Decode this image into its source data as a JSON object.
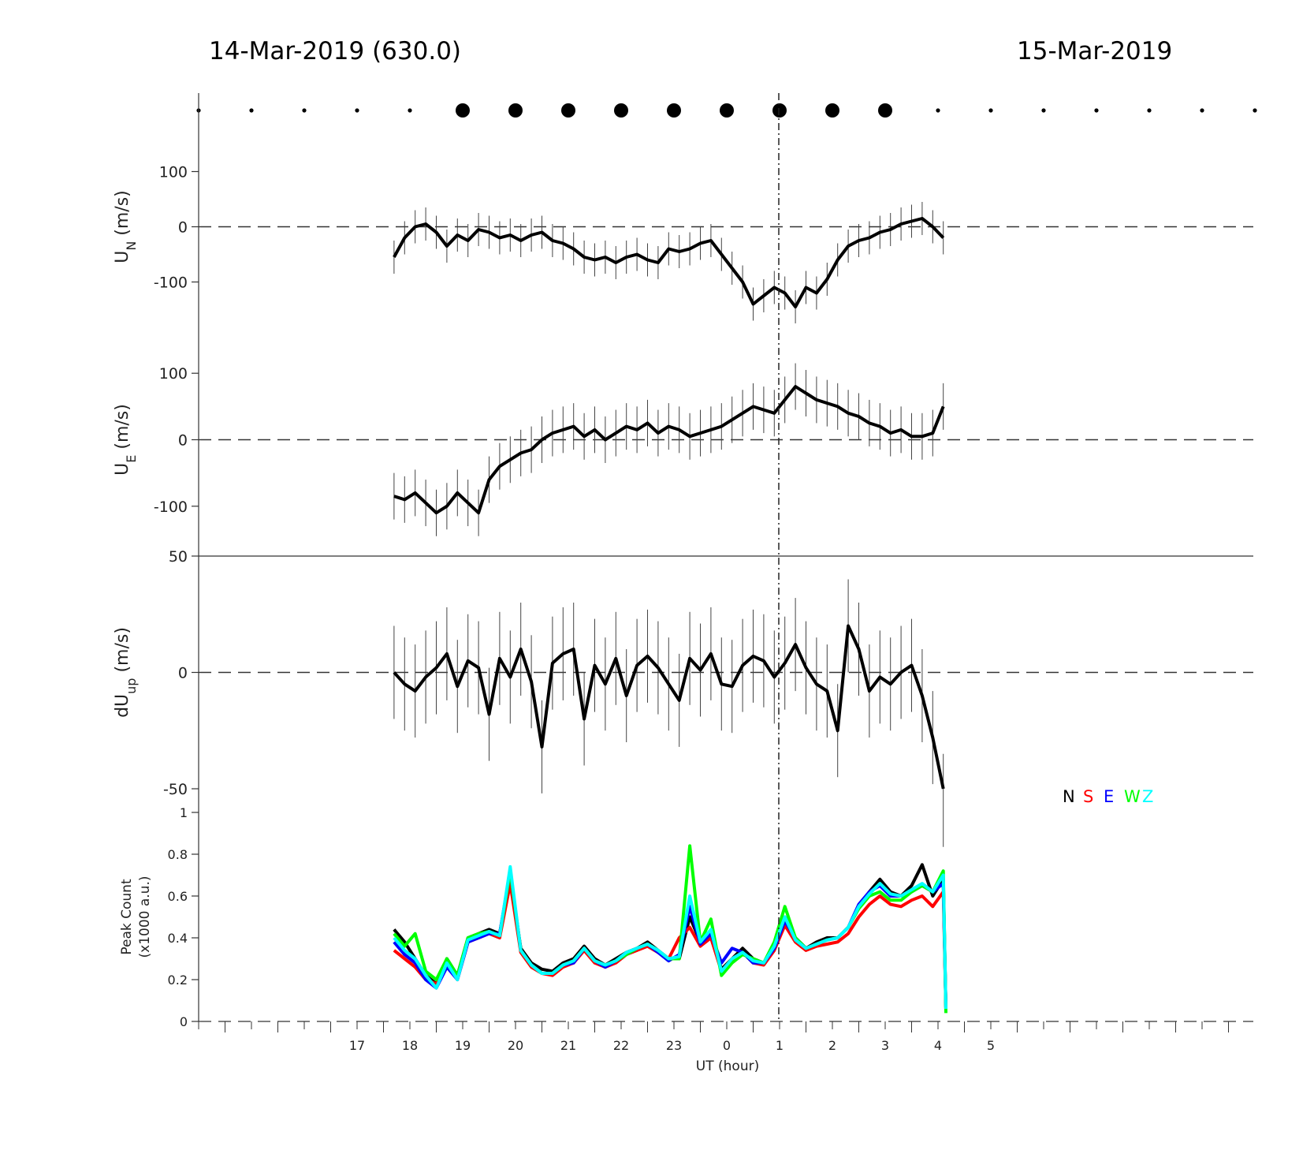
{
  "header": {
    "left_title": "14-Mar-2019 (630.0)",
    "right_title": "15-Mar-2019"
  },
  "chart_data": [
    {
      "type": "scatter",
      "panel": "cloud-indicator",
      "x": [
        14,
        15,
        16,
        17,
        18,
        19,
        20,
        21,
        22,
        23,
        24,
        25,
        26,
        27,
        28,
        29,
        30,
        31,
        32,
        33,
        34
      ],
      "marker_size": [
        "small",
        "small",
        "small",
        "small",
        "small",
        "large",
        "large",
        "large",
        "large",
        "large",
        "large",
        "large",
        "large",
        "large",
        "small",
        "small",
        "small",
        "small",
        "small",
        "small",
        "small"
      ]
    },
    {
      "type": "line",
      "panel": "UN",
      "ylabel": "U",
      "ylabel_sub": "N",
      "ylabel_unit": " (m/s)",
      "ylim": [
        -175,
        175
      ],
      "yticks": [
        100,
        0,
        -100
      ],
      "x": [
        17.7,
        17.9,
        18.1,
        18.3,
        18.5,
        18.7,
        18.9,
        19.1,
        19.3,
        19.5,
        19.7,
        19.9,
        20.1,
        20.3,
        20.5,
        20.7,
        20.9,
        21.1,
        21.3,
        21.5,
        21.7,
        21.9,
        22.1,
        22.3,
        22.5,
        22.7,
        22.9,
        23.1,
        23.3,
        23.5,
        23.7,
        23.9,
        24.1,
        24.3,
        24.5,
        24.7,
        24.9,
        25.1,
        25.3,
        25.5,
        25.7,
        25.9,
        26.1,
        26.3,
        26.5,
        26.7,
        26.9,
        27.1,
        27.3,
        27.5,
        27.7,
        27.9,
        28.1
      ],
      "y": [
        -55,
        -20,
        0,
        5,
        -10,
        -35,
        -15,
        -25,
        -5,
        -10,
        -20,
        -15,
        -25,
        -15,
        -10,
        -25,
        -30,
        -40,
        -55,
        -60,
        -55,
        -65,
        -55,
        -50,
        -60,
        -65,
        -40,
        -45,
        -40,
        -30,
        -25,
        -50,
        -75,
        -100,
        -140,
        -125,
        -110,
        -120,
        -145,
        -110,
        -120,
        -95,
        -60,
        -35,
        -25,
        -20,
        -10,
        -5,
        5,
        10,
        15,
        0,
        -20
      ],
      "err": 30
    },
    {
      "type": "line",
      "panel": "UE",
      "ylabel": "U",
      "ylabel_sub": "E",
      "ylabel_unit": " (m/s)",
      "ylim": [
        -175,
        175
      ],
      "yticks": [
        100,
        0,
        -100
      ],
      "x": [
        17.7,
        17.9,
        18.1,
        18.3,
        18.5,
        18.7,
        18.9,
        19.1,
        19.3,
        19.5,
        19.7,
        19.9,
        20.1,
        20.3,
        20.5,
        20.7,
        20.9,
        21.1,
        21.3,
        21.5,
        21.7,
        21.9,
        22.1,
        22.3,
        22.5,
        22.7,
        22.9,
        23.1,
        23.3,
        23.5,
        23.7,
        23.9,
        24.1,
        24.3,
        24.5,
        24.7,
        24.9,
        25.1,
        25.3,
        25.5,
        25.7,
        25.9,
        26.1,
        26.3,
        26.5,
        26.7,
        26.9,
        27.1,
        27.3,
        27.5,
        27.7,
        27.9,
        28.1
      ],
      "y": [
        -85,
        -90,
        -80,
        -95,
        -110,
        -100,
        -80,
        -95,
        -110,
        -60,
        -40,
        -30,
        -20,
        -15,
        0,
        10,
        15,
        20,
        5,
        15,
        0,
        10,
        20,
        15,
        25,
        10,
        20,
        15,
        5,
        10,
        15,
        20,
        30,
        40,
        50,
        45,
        40,
        60,
        80,
        70,
        60,
        55,
        50,
        40,
        35,
        25,
        20,
        10,
        15,
        5,
        5,
        10,
        50
      ],
      "err": 35
    },
    {
      "type": "line",
      "panel": "dUup",
      "ylabel": "dU",
      "ylabel_sub": "up",
      "ylabel_unit": " (m/s)",
      "ylim": [
        -50,
        50
      ],
      "yticks": [
        50,
        0,
        -50
      ],
      "x": [
        17.7,
        17.9,
        18.1,
        18.3,
        18.5,
        18.7,
        18.9,
        19.1,
        19.3,
        19.5,
        19.7,
        19.9,
        20.1,
        20.3,
        20.5,
        20.7,
        20.9,
        21.1,
        21.3,
        21.5,
        21.7,
        21.9,
        22.1,
        22.3,
        22.5,
        22.7,
        22.9,
        23.1,
        23.3,
        23.5,
        23.7,
        23.9,
        24.1,
        24.3,
        24.5,
        24.7,
        24.9,
        25.1,
        25.3,
        25.5,
        25.7,
        25.9,
        26.1,
        26.3,
        26.5,
        26.7,
        26.9,
        27.1,
        27.3,
        27.5,
        27.7,
        27.9,
        28.1
      ],
      "y": [
        0,
        -5,
        -8,
        -2,
        2,
        8,
        -6,
        5,
        2,
        -18,
        6,
        -2,
        10,
        -4,
        -32,
        4,
        8,
        10,
        -20,
        3,
        -5,
        6,
        -10,
        3,
        7,
        2,
        -5,
        -12,
        6,
        1,
        8,
        -5,
        -6,
        3,
        7,
        5,
        -2,
        4,
        12,
        2,
        -5,
        -8,
        -25,
        20,
        10,
        -8,
        -2,
        -5,
        0,
        3,
        -10,
        -28,
        -55
      ],
      "err": 20
    },
    {
      "type": "line",
      "panel": "peak-count",
      "ylabel": "Peak Count",
      "ylabel2": "(x1000 a.u.)",
      "xlabel": "UT (hour)",
      "ylim": [
        0,
        1
      ],
      "yticks": [
        "1",
        "0.8",
        "0.6",
        "0.4",
        "0.2",
        "0"
      ],
      "xticks": [
        "17",
        "18",
        "19",
        "20",
        "21",
        "22",
        "23",
        "0",
        "1",
        "2",
        "3",
        "4",
        "5"
      ],
      "legend": [
        "N",
        "S",
        "E",
        "W",
        "Z"
      ],
      "colors": [
        "#000000",
        "#ff0000",
        "#0000ff",
        "#00ff00",
        "#00ffff"
      ],
      "x": [
        17.7,
        17.9,
        18.1,
        18.3,
        18.5,
        18.7,
        18.9,
        19.1,
        19.3,
        19.5,
        19.7,
        19.9,
        20.1,
        20.3,
        20.5,
        20.7,
        20.9,
        21.1,
        21.3,
        21.5,
        21.7,
        21.9,
        22.1,
        22.3,
        22.5,
        22.7,
        22.9,
        23.1,
        23.3,
        23.5,
        23.7,
        23.9,
        24.1,
        24.3,
        24.5,
        24.7,
        24.9,
        25.1,
        25.3,
        25.5,
        25.7,
        25.9,
        26.1,
        26.3,
        26.5,
        26.7,
        26.9,
        27.1,
        27.3,
        27.5,
        27.7,
        27.9,
        28.1,
        28.15
      ],
      "series": [
        {
          "name": "N",
          "values": [
            0.44,
            0.38,
            0.3,
            0.22,
            0.18,
            0.3,
            0.22,
            0.4,
            0.42,
            0.44,
            0.42,
            0.7,
            0.35,
            0.28,
            0.25,
            0.24,
            0.28,
            0.3,
            0.36,
            0.3,
            0.27,
            0.3,
            0.33,
            0.35,
            0.38,
            0.34,
            0.3,
            0.3,
            0.5,
            0.38,
            0.42,
            0.25,
            0.3,
            0.35,
            0.3,
            0.28,
            0.36,
            0.5,
            0.4,
            0.35,
            0.38,
            0.4,
            0.4,
            0.45,
            0.55,
            0.62,
            0.68,
            0.62,
            0.6,
            0.65,
            0.75,
            0.6,
            0.68,
            0.06
          ]
        },
        {
          "name": "S",
          "values": [
            0.34,
            0.3,
            0.26,
            0.2,
            0.18,
            0.28,
            0.2,
            0.38,
            0.4,
            0.42,
            0.4,
            0.66,
            0.33,
            0.26,
            0.23,
            0.22,
            0.26,
            0.28,
            0.34,
            0.28,
            0.26,
            0.28,
            0.32,
            0.34,
            0.36,
            0.33,
            0.3,
            0.4,
            0.45,
            0.36,
            0.4,
            0.24,
            0.3,
            0.33,
            0.28,
            0.27,
            0.34,
            0.46,
            0.38,
            0.34,
            0.36,
            0.37,
            0.38,
            0.42,
            0.5,
            0.56,
            0.6,
            0.56,
            0.55,
            0.58,
            0.6,
            0.55,
            0.62,
            0.06
          ]
        },
        {
          "name": "E",
          "values": [
            0.38,
            0.32,
            0.28,
            0.2,
            0.16,
            0.26,
            0.2,
            0.38,
            0.4,
            0.42,
            0.42,
            0.72,
            0.34,
            0.27,
            0.23,
            0.23,
            0.27,
            0.28,
            0.35,
            0.29,
            0.26,
            0.29,
            0.32,
            0.35,
            0.37,
            0.33,
            0.29,
            0.32,
            0.55,
            0.37,
            0.42,
            0.28,
            0.35,
            0.33,
            0.28,
            0.28,
            0.35,
            0.48,
            0.4,
            0.35,
            0.37,
            0.39,
            0.4,
            0.45,
            0.56,
            0.62,
            0.65,
            0.6,
            0.6,
            0.62,
            0.65,
            0.62,
            0.66,
            0.06
          ]
        },
        {
          "name": "W",
          "values": [
            0.42,
            0.36,
            0.42,
            0.24,
            0.2,
            0.3,
            0.22,
            0.4,
            0.42,
            0.43,
            0.41,
            0.72,
            0.34,
            0.27,
            0.23,
            0.23,
            0.27,
            0.29,
            0.35,
            0.29,
            0.27,
            0.29,
            0.32,
            0.35,
            0.37,
            0.34,
            0.3,
            0.3,
            0.84,
            0.38,
            0.49,
            0.22,
            0.28,
            0.32,
            0.3,
            0.28,
            0.38,
            0.55,
            0.4,
            0.35,
            0.37,
            0.39,
            0.4,
            0.45,
            0.54,
            0.6,
            0.62,
            0.58,
            0.58,
            0.62,
            0.65,
            0.62,
            0.72,
            0.04
          ]
        },
        {
          "name": "Z",
          "values": [
            0.4,
            0.34,
            0.3,
            0.22,
            0.16,
            0.28,
            0.2,
            0.39,
            0.41,
            0.43,
            0.41,
            0.74,
            0.34,
            0.27,
            0.23,
            0.23,
            0.27,
            0.29,
            0.35,
            0.29,
            0.27,
            0.29,
            0.33,
            0.35,
            0.37,
            0.34,
            0.3,
            0.31,
            0.6,
            0.38,
            0.44,
            0.24,
            0.3,
            0.33,
            0.29,
            0.28,
            0.36,
            0.5,
            0.39,
            0.35,
            0.37,
            0.39,
            0.4,
            0.45,
            0.55,
            0.61,
            0.66,
            0.61,
            0.6,
            0.63,
            0.66,
            0.62,
            0.7,
            0.06
          ]
        }
      ]
    }
  ]
}
